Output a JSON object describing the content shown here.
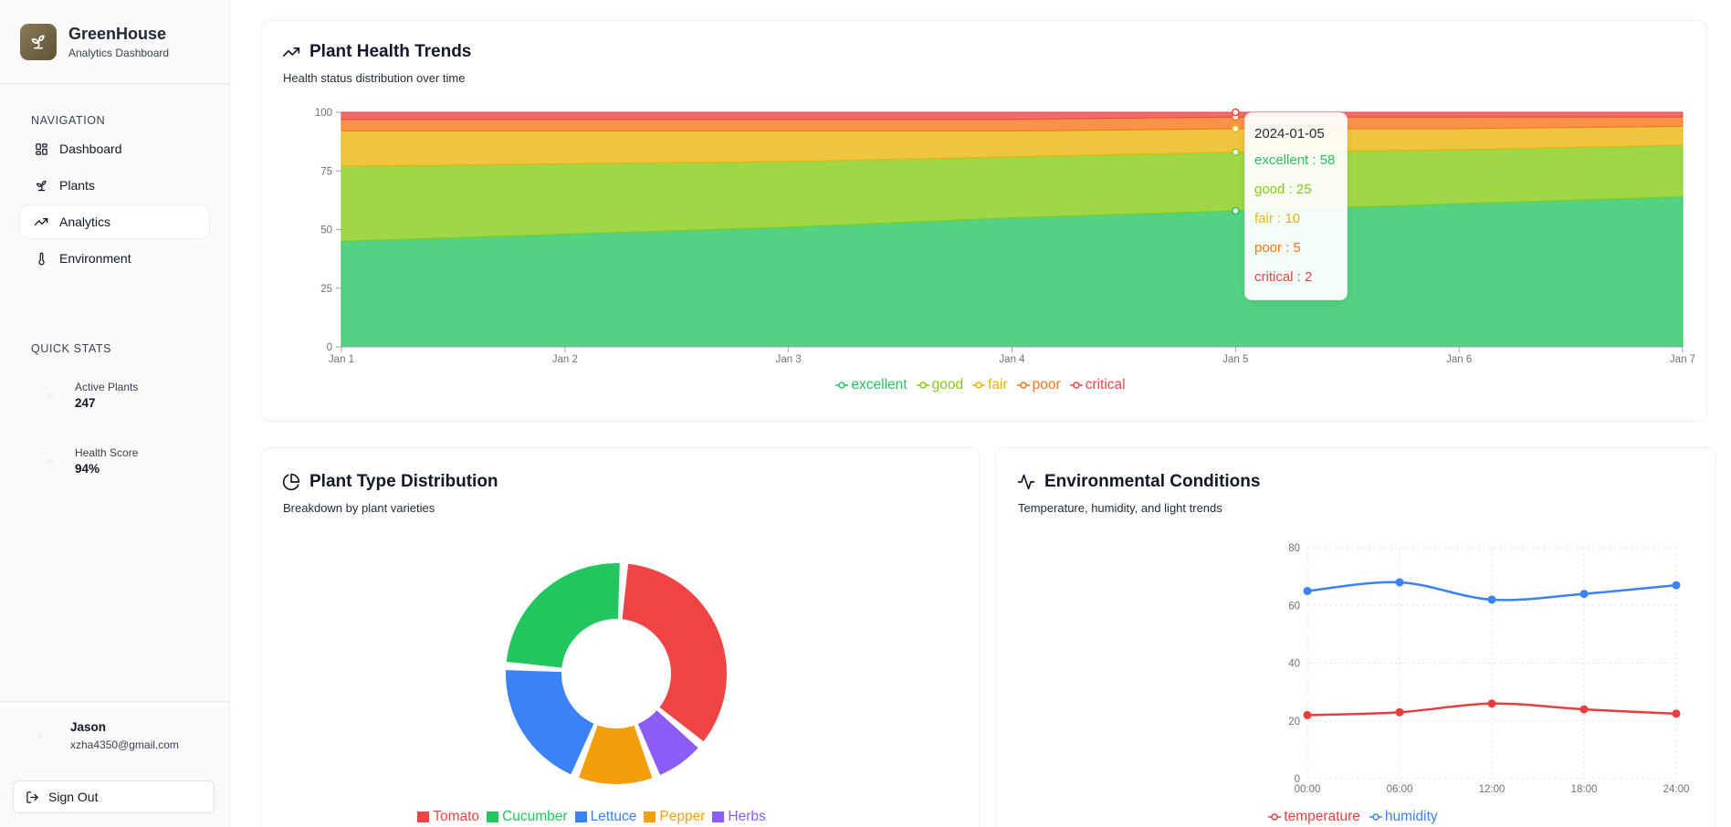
{
  "brand": {
    "name": "GreenHouse",
    "subtitle": "Analytics Dashboard",
    "icon": "sprout-icon"
  },
  "navigation": {
    "title": "NAVIGATION",
    "items": [
      {
        "label": "Dashboard",
        "icon": "grid-icon",
        "active": false
      },
      {
        "label": "Plants",
        "icon": "sprout-icon",
        "active": false
      },
      {
        "label": "Analytics",
        "icon": "trend-icon",
        "active": true
      },
      {
        "label": "Environment",
        "icon": "thermometer-icon",
        "active": false
      }
    ]
  },
  "quick_stats": {
    "title": "QUICK STATS",
    "items": [
      {
        "label": "Active Plants",
        "value": "247"
      },
      {
        "label": "Health Score",
        "value": "94%"
      }
    ]
  },
  "user": {
    "name": "Jason",
    "email": "xzha4350@gmail.com"
  },
  "signout_label": "Sign Out",
  "colors": {
    "excellent": "#22c55e",
    "good": "#84cc16",
    "fair": "#eab308",
    "poor": "#f97316",
    "critical": "#ef4444",
    "tomato": "#ef4444",
    "cucumber": "#22c55e",
    "lettuce": "#3b82f6",
    "pepper": "#f59e0b",
    "herbs": "#8b5cf6",
    "temperature": "#e53e3e",
    "humidity": "#3b82f6"
  },
  "health_card": {
    "title": "Plant Health Trends",
    "subtitle": "Health status distribution over time"
  },
  "type_card": {
    "title": "Plant Type Distribution",
    "subtitle": "Breakdown by plant varieties"
  },
  "env_card": {
    "title": "Environmental Conditions",
    "subtitle": "Temperature, humidity, and light trends"
  },
  "chart_data": [
    {
      "type": "area",
      "stacked": true,
      "x": [
        "Jan 1",
        "Jan 2",
        "Jan 3",
        "Jan 4",
        "Jan 5",
        "Jan 6",
        "Jan 7"
      ],
      "ylim": [
        0,
        100
      ],
      "yticks": [
        0,
        25,
        50,
        75,
        100
      ],
      "series": [
        {
          "name": "excellent",
          "values": [
            45,
            48,
            51,
            55,
            58,
            61,
            64
          ]
        },
        {
          "name": "good",
          "values": [
            32,
            30,
            28,
            26,
            25,
            23,
            22
          ]
        },
        {
          "name": "fair",
          "values": [
            15,
            14,
            13,
            11,
            10,
            9,
            8
          ]
        },
        {
          "name": "poor",
          "values": [
            5,
            5,
            5,
            5,
            5,
            5,
            4
          ]
        },
        {
          "name": "critical",
          "values": [
            3,
            3,
            3,
            3,
            2,
            2,
            2
          ]
        }
      ],
      "tooltip": {
        "date": "2024-01-05",
        "rows": [
          {
            "name": "excellent",
            "text": "excellent : 58"
          },
          {
            "name": "good",
            "text": "good : 25"
          },
          {
            "name": "fair",
            "text": "fair : 10"
          },
          {
            "name": "poor",
            "text": "poor : 5"
          },
          {
            "name": "critical",
            "text": "critical : 2"
          }
        ]
      },
      "legend_position": "bottom-center",
      "grid": false
    },
    {
      "type": "pie",
      "donut": true,
      "categories": [
        "Tomato",
        "Cucumber",
        "Lettuce",
        "Pepper",
        "Herbs"
      ],
      "values": [
        35,
        25,
        20,
        12,
        8
      ],
      "legend_position": "bottom-center"
    },
    {
      "type": "line",
      "x": [
        "00:00",
        "06:00",
        "12:00",
        "18:00",
        "24:00"
      ],
      "ylim": [
        0,
        80
      ],
      "yticks": [
        0,
        20,
        40,
        60,
        80
      ],
      "series": [
        {
          "name": "temperature",
          "values": [
            22,
            23,
            26,
            24,
            22.5
          ]
        },
        {
          "name": "humidity",
          "values": [
            65,
            68,
            62,
            64,
            67
          ]
        }
      ],
      "grid": true,
      "legend_position": "bottom-center"
    }
  ]
}
